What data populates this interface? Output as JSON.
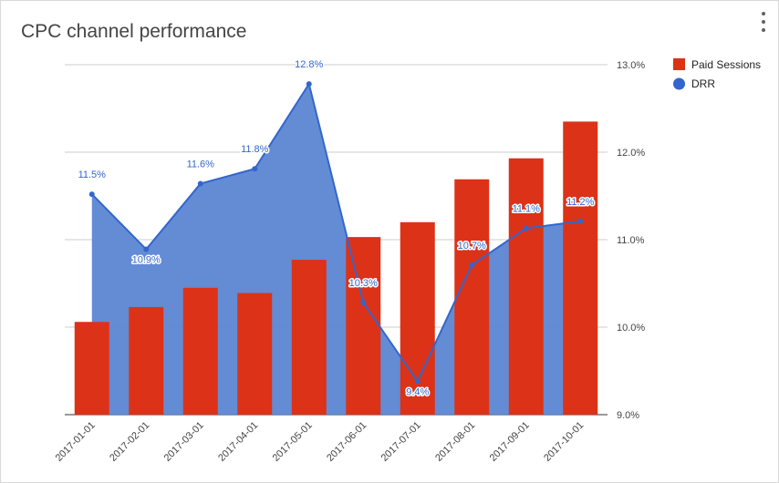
{
  "header": {
    "title": "CPC channel performance",
    "menu_icon": "more-vert-icon"
  },
  "colors": {
    "bar": "#dc3218",
    "line": "#3366cc",
    "area": "#5b86d3",
    "grid": "#cccccc",
    "axis_text": "#444444"
  },
  "chart_data": {
    "type": "bar",
    "title": "CPC channel performance",
    "categories": [
      "2017-01-01",
      "2017-02-01",
      "2017-03-01",
      "2017-04-01",
      "2017-05-01",
      "2017-06-01",
      "2017-07-01",
      "2017-08-01",
      "2017-09-01",
      "2017-10-01"
    ],
    "series": [
      {
        "name": "Paid Sessions",
        "type": "bar",
        "axis": "left",
        "values": [
          1006,
          1023,
          1045,
          1039,
          1077,
          1103,
          1120,
          1169,
          1193,
          1235
        ]
      },
      {
        "name": "DRR",
        "type": "area-line",
        "axis": "right",
        "unit": "%",
        "values": [
          11.52,
          10.89,
          11.64,
          11.81,
          12.78,
          10.28,
          9.38,
          10.71,
          11.13,
          11.21
        ],
        "labels": [
          "11.5%",
          "10.9%",
          "11.6%",
          "11.8%",
          "12.8%",
          "10.3%",
          "9.4%",
          "10.7%",
          "11.1%",
          "11.2%"
        ]
      }
    ],
    "left_axis": {
      "range": [
        900,
        1300
      ],
      "ticks": []
    },
    "right_axis": {
      "range": [
        9.0,
        13.0
      ],
      "ticks": [
        "9.0%",
        "10.0%",
        "11.0%",
        "12.0%",
        "13.0%"
      ]
    },
    "grid": true,
    "legend_position": "right"
  }
}
